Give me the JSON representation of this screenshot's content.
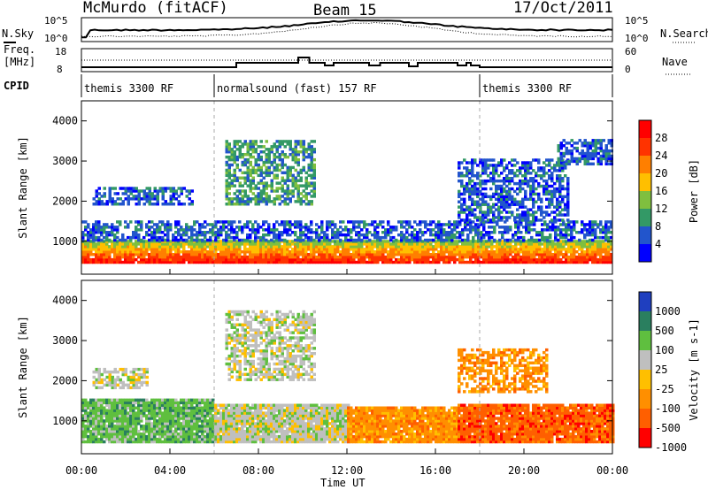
{
  "header": {
    "station": "McMurdo (fitACF)",
    "beam": "Beam 15",
    "date": "17/Oct/2011"
  },
  "summary_panel": {
    "left_top_label": "N.Sky",
    "left_top_ticks": [
      "10^5",
      "10^0"
    ],
    "right_top_ticks": [
      "10^5",
      "10^0"
    ],
    "right_top_label": "N.Search",
    "freq_label_line1": "Freq.",
    "freq_label_line2": "[MHz]",
    "freq_ticks": [
      "18",
      "8"
    ],
    "nave_ticks": [
      "60",
      "0"
    ],
    "nave_label": "Nave",
    "cpid_label": "CPID",
    "cpid_segments": [
      {
        "label": "themis 3300 RF",
        "start_hour": 0,
        "end_hour": 6
      },
      {
        "label": "normalsound (fast) 157 RF",
        "start_hour": 6,
        "end_hour": 18
      },
      {
        "label": "themis 3300 RF",
        "start_hour": 18,
        "end_hour": 24
      }
    ]
  },
  "x_axis": {
    "label": "Time UT",
    "ticks": [
      "00:00",
      "04:00",
      "08:00",
      "12:00",
      "16:00",
      "20:00",
      "00:00"
    ]
  },
  "power_colorbar": {
    "label": "Power [dB]",
    "ticks": [
      "28",
      "24",
      "20",
      "16",
      "12",
      "8",
      "4"
    ],
    "colors": [
      "#ff0000",
      "#ff3300",
      "#ff7f00",
      "#ffbf00",
      "#7fbf3f",
      "#339966",
      "#2255cc",
      "#0000ff"
    ]
  },
  "velocity_colorbar": {
    "label": "Velocity [m s-1]",
    "ticks": [
      "1000",
      "500",
      "100",
      "25",
      "-25",
      "-100",
      "-500",
      "-1000"
    ],
    "colors": [
      "#1f3fbf",
      "#2a7f5f",
      "#5fbf3f",
      "#bfbfbf",
      "#ffbf00",
      "#ff8f00",
      "#ff5f00",
      "#ff0000"
    ]
  },
  "chart_data": [
    {
      "type": "heatmap",
      "title": "Power",
      "xlabel": "Time UT",
      "ylabel": "Slant Range [km]",
      "xlim": [
        0,
        24
      ],
      "ylim": [
        180,
        4500
      ],
      "y_ticks": [
        "4000",
        "3000",
        "2000",
        "1000"
      ],
      "bands": [
        {
          "from_hour": 0,
          "to_hour": 24,
          "range_min": 450,
          "range_max": 1000,
          "dominant": "28"
        },
        {
          "from_hour": 0,
          "to_hour": 24,
          "range_min": 1000,
          "range_max": 1500,
          "dominant": "8"
        },
        {
          "from_hour": 0.5,
          "to_hour": 5,
          "range_min": 1900,
          "range_max": 2300,
          "dominant": "8"
        },
        {
          "from_hour": 6.5,
          "to_hour": 10.5,
          "range_min": 1900,
          "range_max": 3500,
          "dominant": "12"
        },
        {
          "from_hour": 17,
          "to_hour": 22,
          "range_min": 1500,
          "range_max": 3000,
          "dominant": "8"
        },
        {
          "from_hour": 21.5,
          "to_hour": 24,
          "range_min": 2900,
          "range_max": 3500,
          "dominant": "8"
        }
      ]
    },
    {
      "type": "heatmap",
      "title": "Velocity",
      "xlabel": "Time UT",
      "ylabel": "Slant Range [km]",
      "xlim": [
        0,
        24
      ],
      "ylim": [
        180,
        4500
      ],
      "y_ticks": [
        "4000",
        "3000",
        "2000",
        "1000"
      ],
      "bands": [
        {
          "from_hour": 0,
          "to_hour": 6,
          "range_min": 450,
          "range_max": 1500,
          "dominant": "100"
        },
        {
          "from_hour": 6,
          "to_hour": 12,
          "range_min": 450,
          "range_max": 1400,
          "dominant": "25"
        },
        {
          "from_hour": 12,
          "to_hour": 17,
          "range_min": 450,
          "range_max": 1300,
          "dominant": "-100"
        },
        {
          "from_hour": 17,
          "to_hour": 24,
          "range_min": 450,
          "range_max": 1400,
          "dominant": "-500"
        },
        {
          "from_hour": 0.5,
          "to_hour": 3,
          "range_min": 1800,
          "range_max": 2300,
          "dominant": "25"
        },
        {
          "from_hour": 6.5,
          "to_hour": 10.5,
          "range_min": 2000,
          "range_max": 3700,
          "dominant": "25"
        },
        {
          "from_hour": 17,
          "to_hour": 21,
          "range_min": 1700,
          "range_max": 2800,
          "dominant": "-100"
        }
      ]
    }
  ]
}
